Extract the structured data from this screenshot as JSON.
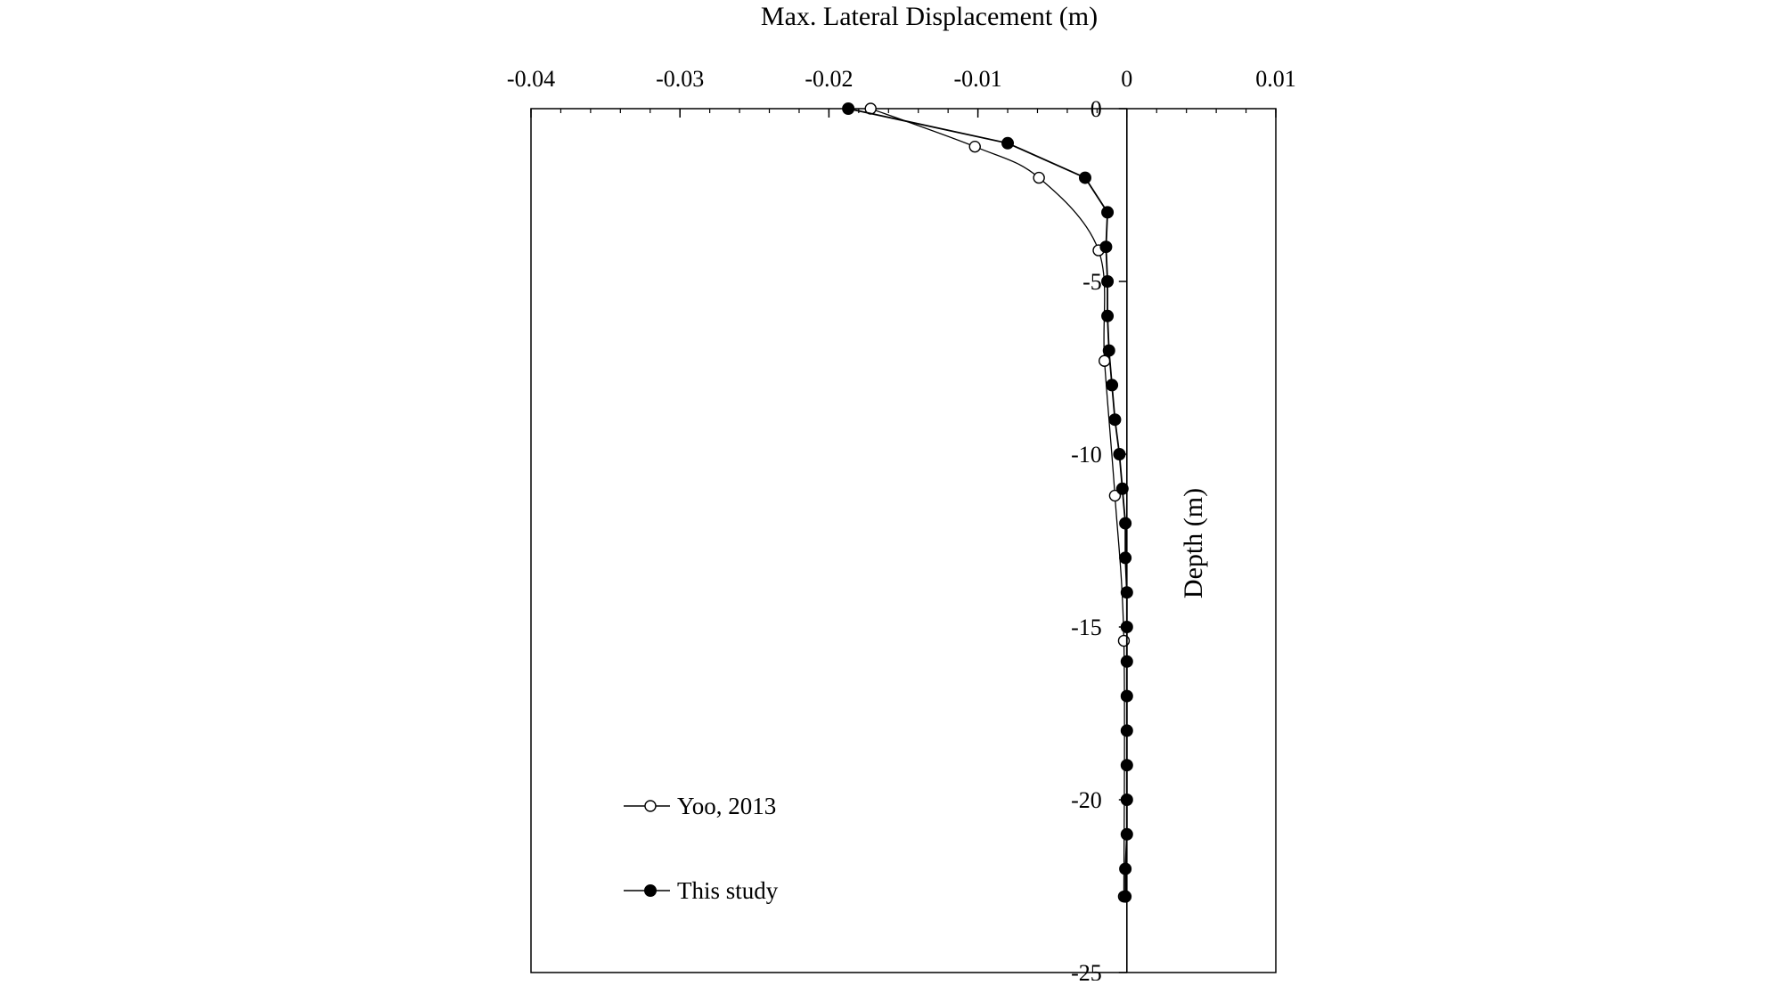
{
  "chart_data": {
    "type": "line",
    "xlabel": "Max. Lateral Displacement (m)",
    "ylabel": "Depth (m)",
    "xlim": [
      -0.04,
      0.01
    ],
    "ylim": [
      0,
      -25
    ],
    "x_ticks": [
      -0.04,
      -0.03,
      -0.02,
      -0.01,
      0,
      0.01
    ],
    "x_tick_labels": [
      "-0.04",
      "-0.03",
      "-0.02",
      "-0.01",
      "0",
      "0.01"
    ],
    "y_ticks": [
      0,
      -5,
      -10,
      -15,
      -20,
      -25
    ],
    "y_tick_labels": [
      "0",
      "-5",
      "-10",
      "-15",
      "-20",
      "-25"
    ],
    "x_axis_position": "top",
    "y_axis_at_x": 0,
    "grid": false,
    "legend_position": "bottom-left",
    "series": [
      {
        "name": "Yoo, 2013",
        "marker": "open-circle",
        "points": [
          [
            -0.0172,
            0.0
          ],
          [
            -0.0102,
            -1.1
          ],
          [
            -0.0059,
            -2.0
          ],
          [
            -0.0019,
            -4.1
          ],
          [
            -0.0015,
            -7.3
          ],
          [
            -0.0008,
            -11.2
          ],
          [
            -0.0002,
            -15.4
          ],
          [
            -0.0002,
            -22.8
          ]
        ]
      },
      {
        "name": "This study",
        "marker": "filled-circle",
        "points": [
          [
            -0.0187,
            0.0
          ],
          [
            -0.008,
            -1.0
          ],
          [
            -0.0028,
            -2.0
          ],
          [
            -0.0013,
            -3.0
          ],
          [
            -0.0014,
            -4.0
          ],
          [
            -0.0013,
            -5.0
          ],
          [
            -0.0013,
            -6.0
          ],
          [
            -0.0012,
            -7.0
          ],
          [
            -0.001,
            -8.0
          ],
          [
            -0.0008,
            -9.0
          ],
          [
            -0.0005,
            -10.0
          ],
          [
            -0.0003,
            -11.0
          ],
          [
            -0.0001,
            -12.0
          ],
          [
            -0.0001,
            -13.0
          ],
          [
            0.0,
            -14.0
          ],
          [
            0.0,
            -15.0
          ],
          [
            0.0,
            -16.0
          ],
          [
            0.0,
            -17.0
          ],
          [
            0.0,
            -18.0
          ],
          [
            0.0,
            -19.0
          ],
          [
            0.0,
            -20.0
          ],
          [
            0.0,
            -21.0
          ],
          [
            -0.0001,
            -22.0
          ],
          [
            -0.0001,
            -22.8
          ]
        ]
      }
    ]
  }
}
